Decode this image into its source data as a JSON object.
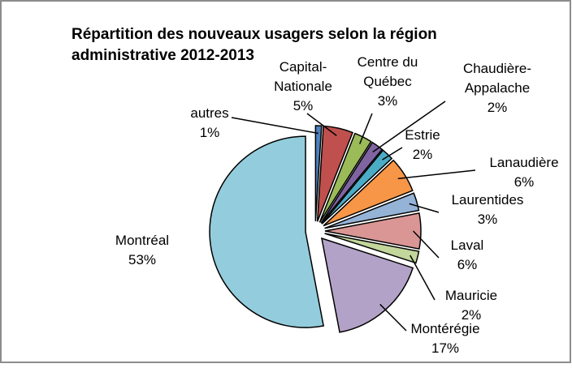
{
  "chart_data": {
    "type": "pie",
    "title": "Répartition des nouveaux usagers selon la région\nadministrative 2012-2013",
    "categories": [
      "autres",
      "Capital-\nNationale",
      "Centre du\nQuébec",
      "Chaudière-\nAppalache",
      "Estrie",
      "Lanaudière",
      "Laurentides",
      "Laval",
      "Mauricie",
      "Montérégie",
      "Montréal"
    ],
    "values": [
      1,
      5,
      3,
      2,
      2,
      6,
      3,
      6,
      2,
      17,
      53
    ],
    "value_labels": [
      "1%",
      "5%",
      "3%",
      "2%",
      "2%",
      "6%",
      "3%",
      "6%",
      "2%",
      "17%",
      "53%"
    ],
    "colors": [
      "#4f81bd",
      "#c0504d",
      "#9bbb59",
      "#8064a2",
      "#4bacc6",
      "#f79646",
      "#95b3d7",
      "#d99694",
      "#c3d69b",
      "#b3a2c7",
      "#93cddd"
    ]
  }
}
